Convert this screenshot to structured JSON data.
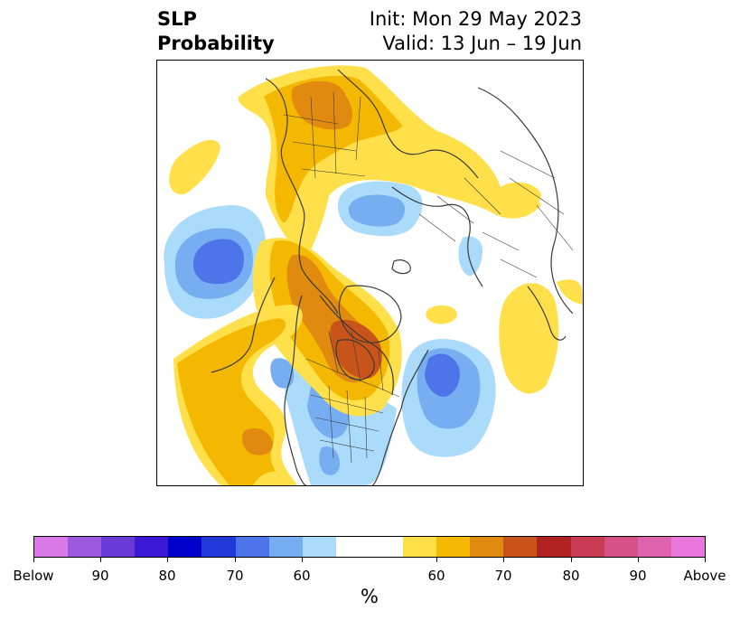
{
  "title": {
    "left_line1": "SLP",
    "left_line2": "Probability",
    "right_line1": "Init: Mon 29 May 2023",
    "right_line2": "Valid: 13 Jun – 19 Jun"
  },
  "colorbar": {
    "unit": "%",
    "below_colors": [
      "#d97ae8",
      "#9b59e0",
      "#6a3ad9",
      "#3a18d6",
      "#0000cc",
      "#2139db",
      "#4d74e8",
      "#77aef2",
      "#aadbfa"
    ],
    "neutral_color": "#ffffff",
    "above_colors": [
      "#ffe04a",
      "#f5b800",
      "#e08a0f",
      "#c9541a",
      "#b22222",
      "#c93b53",
      "#d55186",
      "#de62ad",
      "#e978dc"
    ],
    "tick_labels": [
      "Below",
      "90",
      "80",
      "70",
      "60",
      "60",
      "70",
      "80",
      "90",
      "Above"
    ]
  },
  "map": {
    "legend_levels": {
      "below_60": "#aadbfa",
      "below_70": "#77aef2",
      "below_80": "#4d74e8",
      "above_60": "#ffe04a",
      "above_70": "#f5b800",
      "above_80": "#e08a0f",
      "above_90": "#c9541a",
      "above_100": "#b22222"
    },
    "coastline_color": "#3a3a3a"
  }
}
